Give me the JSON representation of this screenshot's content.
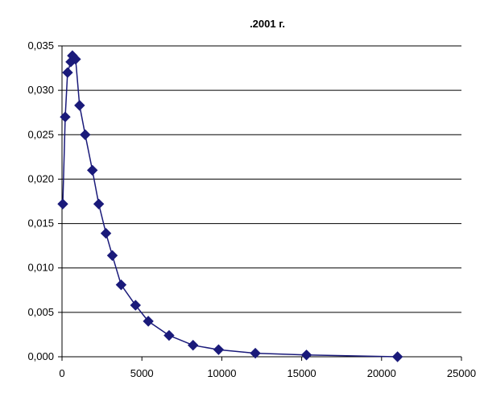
{
  "chart_data": {
    "type": "scatter",
    "title": ".2001 г.",
    "xlabel": "",
    "ylabel": "",
    "xlim": [
      0,
      25000
    ],
    "ylim": [
      0,
      0.035
    ],
    "x_ticks": [
      0,
      5000,
      10000,
      15000,
      20000,
      25000
    ],
    "x_tick_labels": [
      "0",
      "5000",
      "10000",
      "15000",
      "20000",
      "25000"
    ],
    "y_ticks": [
      0,
      0.005,
      0.01,
      0.015,
      0.02,
      0.025,
      0.03,
      0.035
    ],
    "y_tick_labels": [
      "0,000",
      "0,005",
      "0,010",
      "0,015",
      "0,020",
      "0,025",
      "0,030",
      "0,035"
    ],
    "grid": "horizontal",
    "legend": "none",
    "series_color": "#1a1a7a",
    "series": [
      {
        "x": [
          50,
          200,
          350,
          550,
          650,
          850,
          1100,
          1450,
          1900,
          2300,
          2750,
          3150,
          3700,
          4600,
          5400,
          6700,
          8200,
          9800,
          12100,
          15300,
          21000
        ],
        "y": [
          0.0172,
          0.027,
          0.032,
          0.0332,
          0.0339,
          0.0335,
          0.0283,
          0.025,
          0.021,
          0.0172,
          0.0139,
          0.0114,
          0.0081,
          0.0058,
          0.004,
          0.0024,
          0.0013,
          0.0008,
          0.0004,
          0.0002,
          0.0
        ]
      }
    ]
  }
}
